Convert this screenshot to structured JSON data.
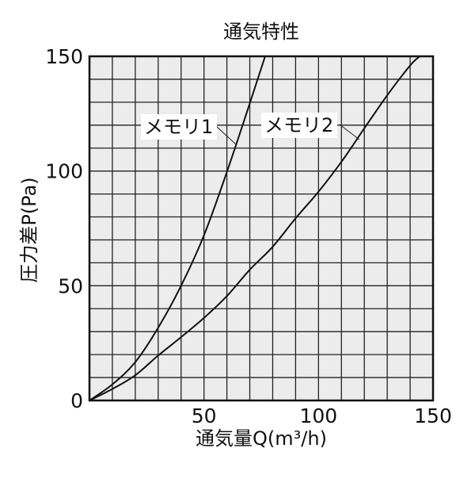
{
  "chart_data": {
    "type": "line",
    "title": "通気特性",
    "xlabel": "通気量Q(m³/h)",
    "ylabel": "圧力差P(Pa)",
    "xlim": [
      0,
      150
    ],
    "ylim": [
      0,
      150
    ],
    "xticks": [
      "0",
      "50",
      "100",
      "150"
    ],
    "yticks": [
      "0",
      "50",
      "100",
      "150"
    ],
    "grid": true,
    "grid_step": 10,
    "plot_background": "#ececec",
    "line_color": "#111111",
    "series": [
      {
        "name": "メモリ1",
        "x": [
          0,
          10,
          20,
          30,
          40,
          50,
          60,
          70,
          76.7
        ],
        "y": [
          0,
          7,
          16.7,
          31.7,
          50,
          72,
          99.6,
          129.5,
          150
        ]
      },
      {
        "name": "メモリ2",
        "x": [
          0,
          10,
          20,
          30,
          40,
          50,
          60,
          70,
          80,
          90,
          100,
          110,
          120,
          130,
          140,
          144.2
        ],
        "y": [
          0,
          5,
          11,
          19.6,
          27.6,
          36,
          45.5,
          57,
          67,
          79.4,
          91,
          104,
          118.6,
          133,
          146,
          150
        ]
      }
    ]
  }
}
